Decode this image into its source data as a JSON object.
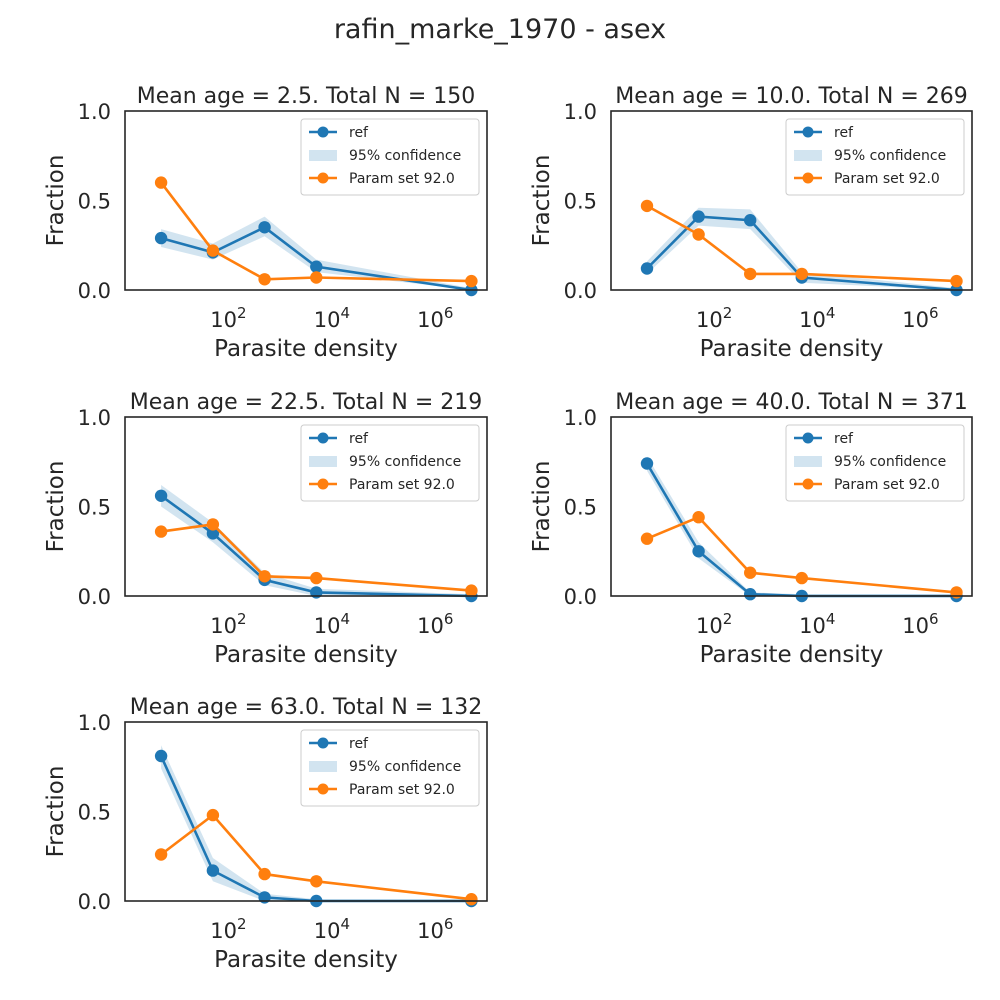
{
  "figure": {
    "title": "rafin_marke_1970 - asex"
  },
  "colors": {
    "ref": "#1f77b4",
    "ci": "#1f77b4",
    "param": "#ff7f0e",
    "axis": "#262626"
  },
  "chart_data": [
    {
      "type": "line",
      "title": "Mean age = 2.5.  Total N = 150",
      "xlabel": "Parasite density",
      "ylabel": "Fraction",
      "xscale": "log",
      "xlim": [
        1,
        10000000
      ],
      "ylim": [
        0,
        1
      ],
      "xticks": [
        "10^2",
        "10^4",
        "10^6"
      ],
      "yticks": [
        "0.0",
        "0.5",
        "1.0"
      ],
      "legend_position": "top-right",
      "x": [
        5,
        50,
        500,
        5000,
        5000000
      ],
      "series": [
        {
          "name": "ref",
          "values": [
            0.29,
            0.21,
            0.35,
            0.13,
            0.0
          ],
          "ci_low": [
            0.24,
            0.17,
            0.3,
            0.1,
            0.0
          ],
          "ci_high": [
            0.34,
            0.26,
            0.41,
            0.17,
            0.01
          ]
        },
        {
          "name": "Param set 92.0",
          "values": [
            0.6,
            0.22,
            0.06,
            0.07,
            0.05
          ]
        }
      ],
      "ci_label": "95% confidence"
    },
    {
      "type": "line",
      "title": "Mean age = 10.0.  Total N = 269",
      "xlabel": "Parasite density",
      "ylabel": "Fraction",
      "xscale": "log",
      "xlim": [
        1,
        10000000
      ],
      "ylim": [
        0,
        1
      ],
      "xticks": [
        "10^2",
        "10^4",
        "10^6"
      ],
      "yticks": [
        "0.0",
        "0.5",
        "1.0"
      ],
      "legend_position": "top-right",
      "x": [
        5,
        50,
        500,
        5000,
        5000000
      ],
      "series": [
        {
          "name": "ref",
          "values": [
            0.12,
            0.41,
            0.39,
            0.07,
            0.0
          ],
          "ci_low": [
            0.09,
            0.36,
            0.34,
            0.04,
            0.0
          ],
          "ci_high": [
            0.16,
            0.46,
            0.45,
            0.1,
            0.01
          ]
        },
        {
          "name": "Param set 92.0",
          "values": [
            0.47,
            0.31,
            0.09,
            0.09,
            0.05
          ]
        }
      ],
      "ci_label": "95% confidence"
    },
    {
      "type": "line",
      "title": "Mean age = 22.5.  Total N = 219",
      "xlabel": "Parasite density",
      "ylabel": "Fraction",
      "xscale": "log",
      "xlim": [
        1,
        10000000
      ],
      "ylim": [
        0,
        1
      ],
      "xticks": [
        "10^2",
        "10^4",
        "10^6"
      ],
      "yticks": [
        "0.0",
        "0.5",
        "1.0"
      ],
      "legend_position": "top-right",
      "x": [
        5,
        50,
        500,
        5000,
        5000000
      ],
      "series": [
        {
          "name": "ref",
          "values": [
            0.56,
            0.35,
            0.09,
            0.02,
            0.0
          ],
          "ci_low": [
            0.5,
            0.3,
            0.06,
            0.0,
            0.0
          ],
          "ci_high": [
            0.62,
            0.41,
            0.13,
            0.04,
            0.01
          ]
        },
        {
          "name": "Param set 92.0",
          "values": [
            0.36,
            0.4,
            0.11,
            0.1,
            0.03
          ]
        }
      ],
      "ci_label": "95% confidence"
    },
    {
      "type": "line",
      "title": "Mean age = 40.0.  Total N = 371",
      "xlabel": "Parasite density",
      "ylabel": "Fraction",
      "xscale": "log",
      "xlim": [
        1,
        10000000
      ],
      "ylim": [
        0,
        1
      ],
      "xticks": [
        "10^2",
        "10^4",
        "10^6"
      ],
      "yticks": [
        "0.0",
        "0.5",
        "1.0"
      ],
      "legend_position": "top-right",
      "x": [
        5,
        50,
        500,
        5000,
        5000000
      ],
      "series": [
        {
          "name": "ref",
          "values": [
            0.74,
            0.25,
            0.01,
            0.0,
            0.0
          ],
          "ci_low": [
            0.7,
            0.21,
            0.0,
            0.0,
            0.0
          ],
          "ci_high": [
            0.78,
            0.3,
            0.02,
            0.01,
            0.01
          ]
        },
        {
          "name": "Param set 92.0",
          "values": [
            0.32,
            0.44,
            0.13,
            0.1,
            0.02
          ]
        }
      ],
      "ci_label": "95% confidence"
    },
    {
      "type": "line",
      "title": "Mean age = 63.0.  Total N = 132",
      "xlabel": "Parasite density",
      "ylabel": "Fraction",
      "xscale": "log",
      "xlim": [
        1,
        10000000
      ],
      "ylim": [
        0,
        1
      ],
      "xticks": [
        "10^2",
        "10^4",
        "10^6"
      ],
      "yticks": [
        "0.0",
        "0.5",
        "1.0"
      ],
      "legend_position": "top-right",
      "x": [
        5,
        50,
        500,
        5000,
        5000000
      ],
      "series": [
        {
          "name": "ref",
          "values": [
            0.81,
            0.17,
            0.02,
            0.0,
            0.0
          ],
          "ci_low": [
            0.74,
            0.11,
            0.0,
            0.0,
            0.0
          ],
          "ci_high": [
            0.87,
            0.24,
            0.04,
            0.01,
            0.01
          ]
        },
        {
          "name": "Param set 92.0",
          "values": [
            0.26,
            0.48,
            0.15,
            0.11,
            0.01
          ]
        }
      ],
      "ci_label": "95% confidence"
    }
  ]
}
